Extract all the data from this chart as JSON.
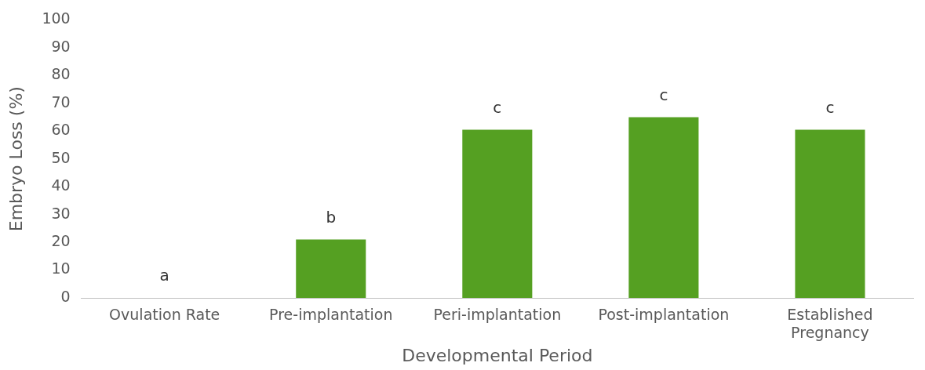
{
  "chart_data": {
    "type": "bar",
    "xlabel": "Developmental Period",
    "ylabel": "Embryo Loss (%)",
    "categories": [
      "Ovulation Rate",
      "Pre-implantation",
      "Peri-implantation",
      "Post-implantation",
      "Established Pregnancy"
    ],
    "values": [
      0,
      21,
      60.5,
      65,
      60.5
    ],
    "color": "#55a022",
    "ylim": [
      0,
      100
    ],
    "yticks": [
      0,
      10,
      20,
      30,
      40,
      50,
      60,
      70,
      80,
      90,
      100
    ],
    "grid": false,
    "legend": false,
    "annotations": [
      {
        "text": "a",
        "x": "Ovulation Rate",
        "y": 0
      },
      {
        "text": "b",
        "x": "Pre-implantation",
        "y": 21
      },
      {
        "text": "c",
        "x": "Peri-implantation",
        "y": 60.5
      },
      {
        "text": "c",
        "x": "Post-implantation",
        "y": 65
      },
      {
        "text": "c",
        "x": "Established Pregnancy",
        "y": 60.5
      }
    ]
  }
}
